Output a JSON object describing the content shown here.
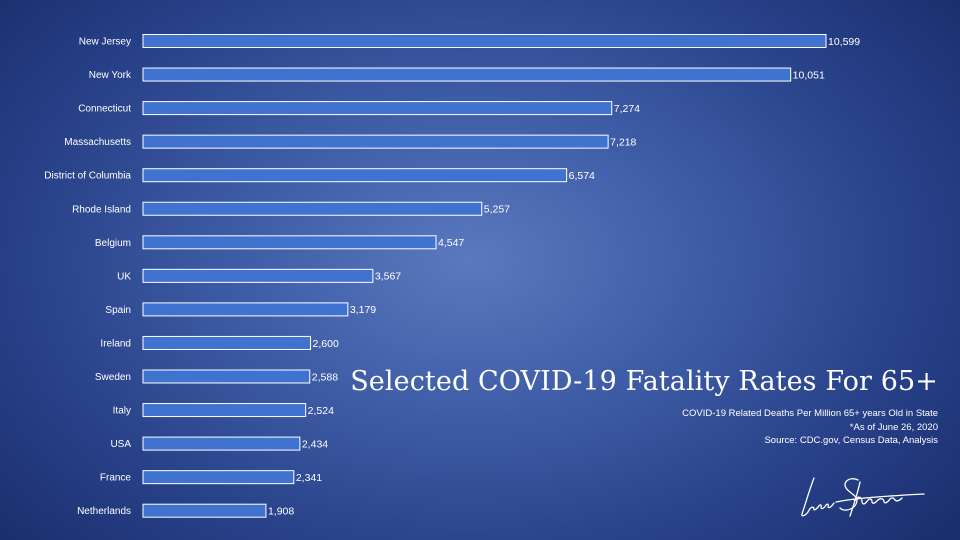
{
  "chart_data": {
    "type": "bar",
    "orientation": "horizontal",
    "title": "Selected COVID-19 Fatality Rates For 65+",
    "subtitle_lines": [
      "COVID-19 Related Deaths Per Million 65+ years Old in State",
      "*As of  June 26, 2020",
      "Source: CDC.gov, Census Data, Analysis"
    ],
    "categories": [
      "New Jersey",
      "New York",
      "Connecticut",
      "Massachusetts",
      "District of Columbia",
      "Rhode Island",
      "Belgium",
      "UK",
      "Spain",
      "Ireland",
      "Sweden",
      "Italy",
      "USA",
      "France",
      "Netherlands"
    ],
    "values": [
      10599,
      10051,
      7274,
      7218,
      6574,
      5257,
      4547,
      3567,
      3179,
      2600,
      2588,
      2524,
      2434,
      2341,
      1908
    ],
    "value_labels": [
      "10,599",
      "10,051",
      "7,274",
      "7,218",
      "6,574",
      "5,257",
      "4,547",
      "3,567",
      "3,179",
      "2,600",
      "2,588",
      "2,524",
      "2,434",
      "2,341",
      "1,908"
    ],
    "xlim": [
      0,
      10599
    ],
    "grid": false,
    "legend": "none",
    "bar_color": "#3f73cf",
    "bar_outline_color": "#ffffff"
  },
  "signature": {
    "description_icon": "handwritten-signature-icon",
    "text": "Lance Shirreffs"
  }
}
